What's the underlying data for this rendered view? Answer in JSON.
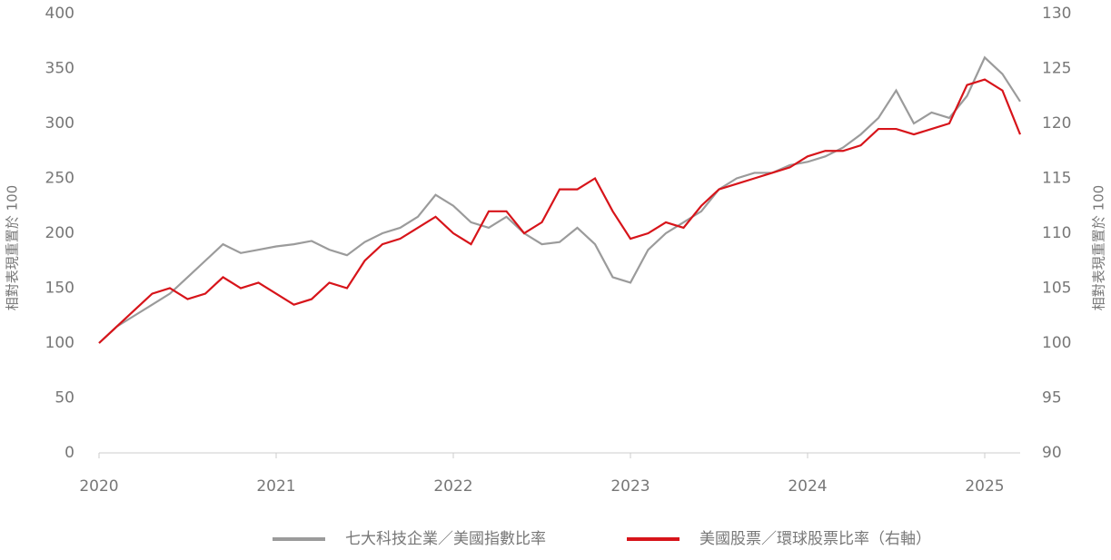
{
  "chart_data": {
    "type": "line",
    "y_label": "相對表現重置於 100",
    "y2_label": "相對表現重置於 100",
    "x": [
      2020.0,
      2020.1,
      2020.2,
      2020.3,
      2020.4,
      2020.5,
      2020.6,
      2020.7,
      2020.8,
      2020.9,
      2021.0,
      2021.1,
      2021.2,
      2021.3,
      2021.4,
      2021.5,
      2021.6,
      2021.7,
      2021.8,
      2021.9,
      2022.0,
      2022.1,
      2022.2,
      2022.3,
      2022.4,
      2022.5,
      2022.6,
      2022.7,
      2022.8,
      2022.9,
      2023.0,
      2023.1,
      2023.2,
      2023.3,
      2023.4,
      2023.5,
      2023.6,
      2023.7,
      2023.8,
      2023.9,
      2024.0,
      2024.1,
      2024.2,
      2024.3,
      2024.4,
      2024.5,
      2024.6,
      2024.7,
      2024.8,
      2024.9,
      2025.0,
      2025.1,
      2025.2
    ],
    "series": [
      {
        "name": "七大科技企業／美國指數比率",
        "color": "#9b9b9b",
        "values": [
          100,
          115,
          125,
          135,
          145,
          160,
          175,
          190,
          182,
          185,
          188,
          190,
          193,
          185,
          180,
          192,
          200,
          205,
          215,
          235,
          225,
          210,
          205,
          215,
          200,
          190,
          192,
          205,
          190,
          160,
          155,
          185,
          200,
          210,
          220,
          240,
          250,
          255,
          255,
          262,
          265,
          270,
          278,
          290,
          305,
          330,
          300,
          310,
          305,
          325,
          360,
          345,
          320
        ]
      },
      {
        "name": "美國股票／環球股票比率（右軸）",
        "color": "#d7141a",
        "axis": "y2",
        "values": [
          100,
          101.5,
          103,
          104.5,
          105,
          104,
          104.5,
          106,
          105,
          105.5,
          104.5,
          103.5,
          104,
          105.5,
          105,
          107.5,
          109,
          109.5,
          110.5,
          111.5,
          110,
          109,
          112,
          112,
          110,
          111,
          114,
          114,
          115,
          112,
          109.5,
          110,
          111,
          110.5,
          112.5,
          114,
          114.5,
          115,
          115.5,
          116,
          117,
          117.5,
          117.5,
          118,
          119.5,
          119.5,
          119,
          119.5,
          120,
          123.5,
          124,
          123,
          119
        ]
      }
    ],
    "xlim": [
      2020,
      2025.2
    ],
    "xticks": [
      2020,
      2021,
      2022,
      2023,
      2024,
      2025
    ],
    "ylim": [
      0,
      400
    ],
    "yticks": [
      0,
      50,
      100,
      150,
      200,
      250,
      300,
      350,
      400
    ],
    "y2lim": [
      90,
      130
    ],
    "y2ticks": [
      90,
      95,
      100,
      105,
      110,
      115,
      120,
      125,
      130
    ],
    "grid": false
  }
}
